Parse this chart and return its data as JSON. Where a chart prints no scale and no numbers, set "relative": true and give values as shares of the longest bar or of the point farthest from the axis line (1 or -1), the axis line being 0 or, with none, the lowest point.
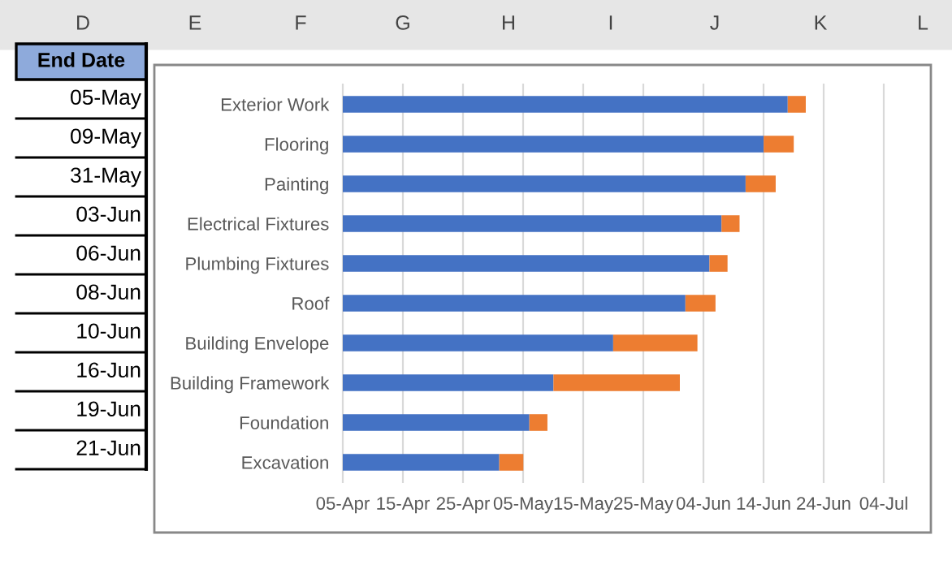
{
  "chart_data": {
    "type": "bar",
    "orientation": "horizontal",
    "stacked": true,
    "relative": true,
    "categories": [
      "Exterior Work",
      "Flooring",
      "Painting",
      "Electrical Fixtures",
      "Plumbing Fixtures",
      "Roof",
      "Building Envelope",
      "Building Framework",
      "Foundation",
      "Excavation"
    ],
    "series": [
      {
        "color": "#4472c4",
        "values": [
          0.961,
          0.909,
          0.87,
          0.818,
          0.792,
          0.74,
          0.584,
          0.455,
          0.403,
          0.338
        ]
      },
      {
        "color": "#ed7d31",
        "values": [
          0.039,
          0.065,
          0.065,
          0.039,
          0.039,
          0.065,
          0.182,
          0.273,
          0.039,
          0.052
        ]
      }
    ],
    "grid": "x",
    "annotations": [
      "D",
      "E",
      "F",
      "G",
      "H",
      "I",
      "J",
      "K",
      "L",
      "05-Apr",
      "15-Apr",
      "25-Apr",
      "05-May",
      "15-May",
      "25-May",
      "04-Jun",
      "14-Jun",
      "24-Jun",
      "04-Jul",
      "End Date",
      "05-May",
      "09-May",
      "31-May",
      "03-Jun",
      "06-Jun",
      "08-Jun",
      "10-Jun",
      "16-Jun",
      "19-Jun",
      "21-Jun"
    ]
  }
}
